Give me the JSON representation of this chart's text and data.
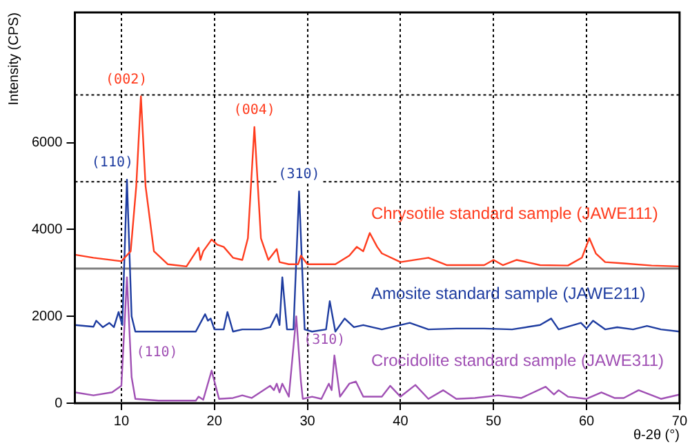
{
  "chart_data": {
    "type": "line",
    "xlabel": "θ-2θ (°)",
    "ylabel": "Intensity (CPS)",
    "xlim": [
      5,
      70
    ],
    "xticks": [
      10,
      20,
      30,
      40,
      50,
      60,
      70
    ],
    "ylim": [
      0,
      9000
    ],
    "yticks": [
      0,
      2000,
      4000,
      6000
    ],
    "grid": "x",
    "legend": false,
    "marker": "none",
    "line_style": "solid",
    "series": [
      {
        "name": "Chrysotile standard sample (JAWE111)",
        "color": "#ff3c1e",
        "x": [
          5,
          7,
          10,
          11,
          11.6,
          12.1,
          12.6,
          13.5,
          15,
          17,
          18.3,
          18.5,
          18.8,
          19.7,
          20.3,
          21,
          22,
          23,
          23.6,
          24.3,
          25,
          25.8,
          26.7,
          27,
          28,
          29,
          29.3,
          30,
          33,
          34.5,
          35.3,
          36,
          36.7,
          37.5,
          38,
          40,
          43,
          45,
          49,
          50,
          51,
          52.5,
          55,
          58,
          59.5,
          60.3,
          61,
          62,
          64,
          67,
          70
        ],
        "values": [
          3420,
          3350,
          3270,
          3500,
          5000,
          7070,
          5000,
          3500,
          3200,
          3150,
          3580,
          3300,
          3500,
          3770,
          3650,
          3600,
          3350,
          3300,
          3800,
          6360,
          3800,
          3300,
          3550,
          3250,
          3200,
          3200,
          3400,
          3200,
          3200,
          3400,
          3600,
          3500,
          3920,
          3600,
          3450,
          3250,
          3350,
          3180,
          3180,
          3300,
          3180,
          3300,
          3180,
          3170,
          3350,
          3800,
          3450,
          3250,
          3220,
          3170,
          3150
        ]
      },
      {
        "name": "Amosite standard sample (JAWE211)",
        "color": "#1e3ca0",
        "x": [
          5,
          7,
          7.3,
          8,
          8.7,
          9.2,
          9.7,
          10.1,
          10.6,
          11.1,
          11.5,
          14,
          18,
          19,
          19.3,
          19.6,
          20,
          21,
          21.4,
          22,
          23,
          25,
          26,
          26.7,
          27,
          27.3,
          27.8,
          28.5,
          29.1,
          29.7,
          30.5,
          32,
          32.4,
          33,
          34,
          35,
          36,
          38,
          41,
          43,
          46,
          49,
          52,
          55,
          56.2,
          57,
          59.4,
          60,
          60.7,
          62,
          63.3,
          65,
          66.5,
          68,
          70
        ],
        "values": [
          1800,
          1760,
          1900,
          1750,
          1850,
          1750,
          2100,
          1800,
          5150,
          2000,
          1650,
          1650,
          1650,
          2050,
          1900,
          1950,
          1700,
          1700,
          2100,
          1650,
          1700,
          1700,
          1750,
          2050,
          1800,
          2900,
          1700,
          1700,
          4880,
          1700,
          1650,
          1700,
          2350,
          1650,
          1950,
          1750,
          1800,
          1700,
          1850,
          1700,
          1720,
          1720,
          1700,
          1800,
          1950,
          1700,
          1850,
          1720,
          1900,
          1700,
          1750,
          1700,
          1780,
          1700,
          1650
        ]
      },
      {
        "name": "Crocidolite standard sample (JAWE311)",
        "color": "#a050b4",
        "x": [
          5,
          7,
          9,
          10,
          10.6,
          11.1,
          11.5,
          14,
          18,
          18.3,
          18.8,
          19.7,
          20.5,
          22,
          23,
          24,
          26,
          26.4,
          26.7,
          27,
          27.3,
          28,
          28.8,
          29.3,
          29.5,
          30.5,
          31.5,
          32.3,
          32.6,
          32.9,
          33.5,
          34.5,
          35.2,
          36,
          38,
          38.9,
          40,
          41.6,
          43,
          44.6,
          46,
          48,
          50.5,
          53,
          55.6,
          56.5,
          57,
          58,
          60,
          61.6,
          63,
          64,
          65.6,
          68,
          70
        ],
        "values": [
          250,
          180,
          250,
          400,
          2900,
          600,
          100,
          60,
          60,
          150,
          80,
          750,
          100,
          120,
          180,
          120,
          400,
          300,
          450,
          250,
          450,
          150,
          2000,
          500,
          100,
          150,
          100,
          450,
          300,
          1100,
          150,
          450,
          500,
          150,
          150,
          400,
          150,
          420,
          100,
          300,
          100,
          120,
          180,
          120,
          380,
          200,
          300,
          150,
          100,
          250,
          120,
          120,
          300,
          100,
          200
        ]
      }
    ],
    "ref_lines": [
      {
        "axis": "y",
        "value": 3100,
        "color": "#808080",
        "line_style": "solid"
      },
      {
        "axis": "y",
        "value": 5100,
        "color": "#000000",
        "line_style": "dotted"
      },
      {
        "axis": "y",
        "value": 7100,
        "color": "#000000",
        "line_style": "dotted"
      }
    ],
    "annotations": [
      {
        "text": "(002)",
        "x": 12.1,
        "y": 7070
      },
      {
        "text": "(004)",
        "x": 24.3,
        "y": 6360
      },
      {
        "text": "(110)",
        "x": 10.6,
        "y": 5150
      },
      {
        "text": "(310)",
        "x": 29.1,
        "y": 4880
      },
      {
        "text": "(110)",
        "x": 11.0,
        "y": 1170
      },
      {
        "text": "(310)",
        "x": 29.0,
        "y": 1450
      }
    ]
  }
}
